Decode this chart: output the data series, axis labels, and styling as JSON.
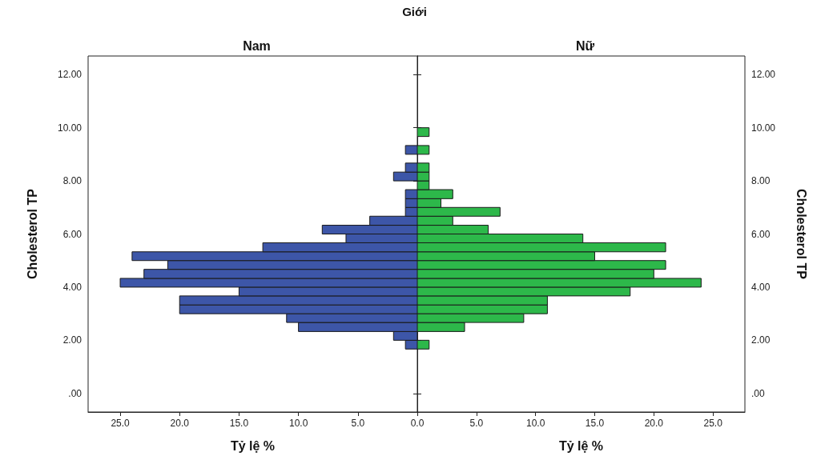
{
  "chart_data": [
    {
      "type": "histogram",
      "title": "Giới",
      "subtitle": "Nam",
      "orientation": "horizontal",
      "xlabel": "Tỷ lệ %",
      "ylabel": "Cholesterol TP",
      "bins": [
        1.67,
        2,
        2.33,
        2.67,
        3,
        3.33,
        3.67,
        4,
        4.33,
        4.67,
        5,
        5.33,
        5.67,
        6,
        6.33,
        6.67,
        7,
        7.33,
        7.67,
        8,
        8.33,
        8.67,
        9,
        9.33,
        9.67,
        10
      ],
      "series": [
        {
          "color": "#3d56a8",
          "values": [
            1,
            2,
            10,
            11,
            20,
            20,
            15,
            25,
            23,
            21,
            24,
            13,
            6,
            8,
            4,
            1,
            1,
            1,
            0,
            2,
            1,
            0,
            1,
            0,
            0
          ]
        }
      ],
      "xlim": [
        27.7,
        0
      ],
      "xticks": [
        {
          "value": 25,
          "label": "25.0"
        },
        {
          "value": 20,
          "label": "20.0"
        },
        {
          "value": 15,
          "label": "15.0"
        },
        {
          "value": 10,
          "label": "10.0"
        },
        {
          "value": 5,
          "label": "5.0"
        },
        {
          "value": 0,
          "label": "0.0"
        }
      ],
      "ylim": [
        -0.7,
        12.7
      ],
      "yticks": [
        {
          "value": 0,
          "label": ".00"
        },
        {
          "value": 2,
          "label": "2.00"
        },
        {
          "value": 4,
          "label": "4.00"
        },
        {
          "value": 6,
          "label": "6.00"
        },
        {
          "value": 8,
          "label": "8.00"
        },
        {
          "value": 10,
          "label": "10.00"
        },
        {
          "value": 12,
          "label": "12.00"
        }
      ]
    },
    {
      "type": "histogram",
      "subtitle": "Nữ",
      "orientation": "horizontal",
      "xlabel": "Tỷ lệ %",
      "ylabel": "Cholesterol TP",
      "bins": [
        1.67,
        2,
        2.33,
        2.67,
        3,
        3.33,
        3.67,
        4,
        4.33,
        4.67,
        5,
        5.33,
        5.67,
        6,
        6.33,
        6.67,
        7,
        7.33,
        7.67,
        8,
        8.33,
        8.67,
        9,
        9.33,
        9.67,
        10
      ],
      "series": [
        {
          "color": "#2db84a",
          "values": [
            1,
            0,
            4,
            9,
            11,
            11,
            18,
            24,
            20,
            21,
            15,
            21,
            14,
            6,
            3,
            7,
            2,
            3,
            1,
            1,
            1,
            0,
            1,
            0,
            1
          ]
        }
      ],
      "xlim": [
        0,
        27.7
      ],
      "xticks": [
        {
          "value": 0,
          "label": null
        },
        {
          "value": 5,
          "label": "5.0"
        },
        {
          "value": 10,
          "label": "10.0"
        },
        {
          "value": 15,
          "label": "15.0"
        },
        {
          "value": 20,
          "label": "20.0"
        },
        {
          "value": 25,
          "label": "25.0"
        }
      ],
      "ylim": [
        -0.7,
        12.7
      ],
      "yticks": [
        {
          "value": 0,
          "label": ".00"
        },
        {
          "value": 2,
          "label": "2.00"
        },
        {
          "value": 4,
          "label": "4.00"
        },
        {
          "value": 6,
          "label": "6.00"
        },
        {
          "value": 8,
          "label": "8.00"
        },
        {
          "value": 10,
          "label": "10.00"
        },
        {
          "value": 12,
          "label": "12.00"
        }
      ]
    }
  ]
}
